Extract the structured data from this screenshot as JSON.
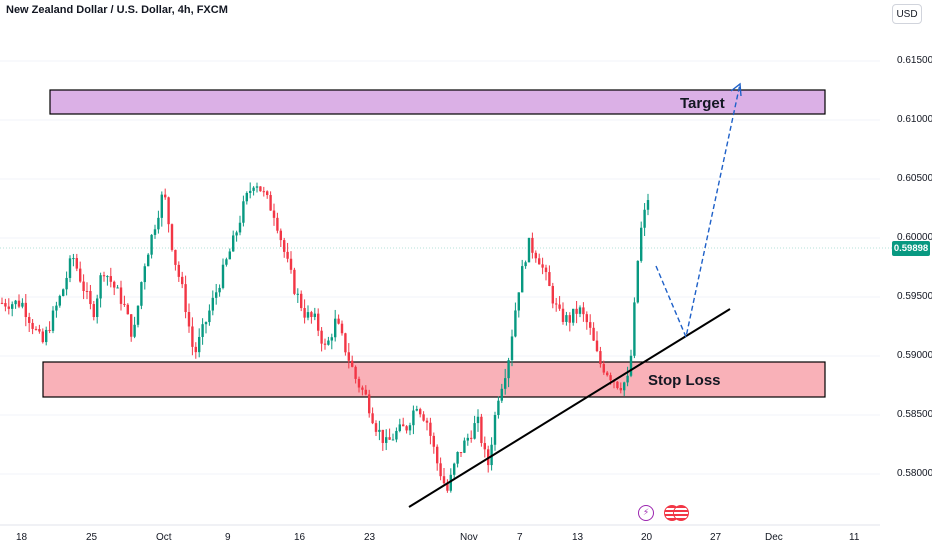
{
  "header": {
    "title": "New Zealand Dollar / U.S. Dollar, 4h, FXCM",
    "currency_button": "USD"
  },
  "current_price": "0.59898",
  "annotations": {
    "target_label": "Target",
    "stop_loss_label": "Stop Loss"
  },
  "colors": {
    "up": "#089981",
    "down": "#f23645",
    "target_zone": "#dbb0e6",
    "stop_zone": "#f9b1b8",
    "projection": "#1e60c8",
    "trendline": "#000000"
  },
  "icons": [
    "lightning-icon",
    "us-flag-icon",
    "us-flag-icon"
  ],
  "chart_data": {
    "type": "candlestick",
    "title": "New Zealand Dollar / U.S. Dollar, 4h, FXCM",
    "ylim": [
      0.5767,
      0.6172
    ],
    "y_ticks": [
      "0.61500",
      "0.61000",
      "0.60500",
      "0.60000",
      "0.59500",
      "0.59000",
      "0.58500",
      "0.58000"
    ],
    "x_ticks": [
      "18",
      "25",
      "Oct",
      "9",
      "16",
      "23",
      "Nov",
      "7",
      "13",
      "20",
      "27",
      "Dec",
      "11"
    ],
    "price_path": [
      [
        "Sep 18",
        0.5945
      ],
      [
        "Sep 20",
        0.591
      ],
      [
        "Sep 22",
        0.5955
      ],
      [
        "Sep 23",
        0.5985
      ],
      [
        "Sep 25",
        0.5935
      ],
      [
        "Sep 26",
        0.5975
      ],
      [
        "Sep 28",
        0.5945
      ],
      [
        "Sep 29",
        0.5915
      ],
      [
        "Sep 30",
        0.5975
      ],
      [
        "Oct 1",
        0.604
      ],
      [
        "Oct 2",
        0.5985
      ],
      [
        "Oct 3",
        0.595
      ],
      [
        "Oct 4",
        0.59
      ],
      [
        "Oct 5",
        0.5925
      ],
      [
        "Oct 7",
        0.5975
      ],
      [
        "Oct 8",
        0.6
      ],
      [
        "Oct 9",
        0.603
      ],
      [
        "Oct 10",
        0.605
      ],
      [
        "Oct 11",
        0.6035
      ],
      [
        "Oct 12",
        0.602
      ],
      [
        "Oct 13",
        0.5985
      ],
      [
        "Oct 14",
        0.5955
      ],
      [
        "Oct 15",
        0.5935
      ],
      [
        "Oct 16",
        0.593
      ],
      [
        "Oct 17",
        0.5905
      ],
      [
        "Oct 18",
        0.593
      ],
      [
        "Oct 19",
        0.5905
      ],
      [
        "Oct 20",
        0.588
      ],
      [
        "Oct 21",
        0.5865
      ],
      [
        "Oct 22",
        0.584
      ],
      [
        "Oct 23",
        0.5825
      ],
      [
        "Oct 24",
        0.5835
      ],
      [
        "Oct 25",
        0.584
      ],
      [
        "Oct 26",
        0.586
      ],
      [
        "Oct 27",
        0.5845
      ],
      [
        "Oct 28",
        0.581
      ],
      [
        "Oct 29",
        0.5785
      ],
      [
        "Oct 30",
        0.5815
      ],
      [
        "Oct 31",
        0.583
      ],
      [
        "Nov 1",
        0.5845
      ],
      [
        "Nov 2",
        0.5805
      ],
      [
        "Nov 3",
        0.5865
      ],
      [
        "Nov 4",
        0.5895
      ],
      [
        "Nov 5",
        0.5955
      ],
      [
        "Nov 6",
        0.5995
      ],
      [
        "Nov 7",
        0.5985
      ],
      [
        "Nov 8",
        0.596
      ],
      [
        "Nov 9",
        0.5935
      ],
      [
        "Nov 10",
        0.593
      ],
      [
        "Nov 11",
        0.594
      ],
      [
        "Nov 12",
        0.5925
      ],
      [
        "Nov 13",
        0.5895
      ],
      [
        "Nov 14",
        0.5885
      ],
      [
        "Nov 15",
        0.5875
      ],
      [
        "Nov 16",
        0.588
      ],
      [
        "Nov 17",
        0.6
      ],
      [
        "Nov 18",
        0.604
      ],
      [
        "Nov 19",
        0.6005
      ],
      [
        "Nov 20",
        0.5965
      ],
      [
        "Nov 21",
        0.599
      ]
    ],
    "target_zone": [
      0.6104,
      0.6125
    ],
    "stop_loss_zone": [
      0.5864,
      0.5893
    ],
    "trendline": [
      [
        "Oct 28",
        0.5772
      ],
      [
        "Nov 30",
        0.594
      ]
    ],
    "projection": [
      [
        "Nov 21",
        0.5975
      ],
      [
        "Nov 25",
        0.5915
      ],
      [
        "Nov 28",
        0.613
      ]
    ]
  }
}
